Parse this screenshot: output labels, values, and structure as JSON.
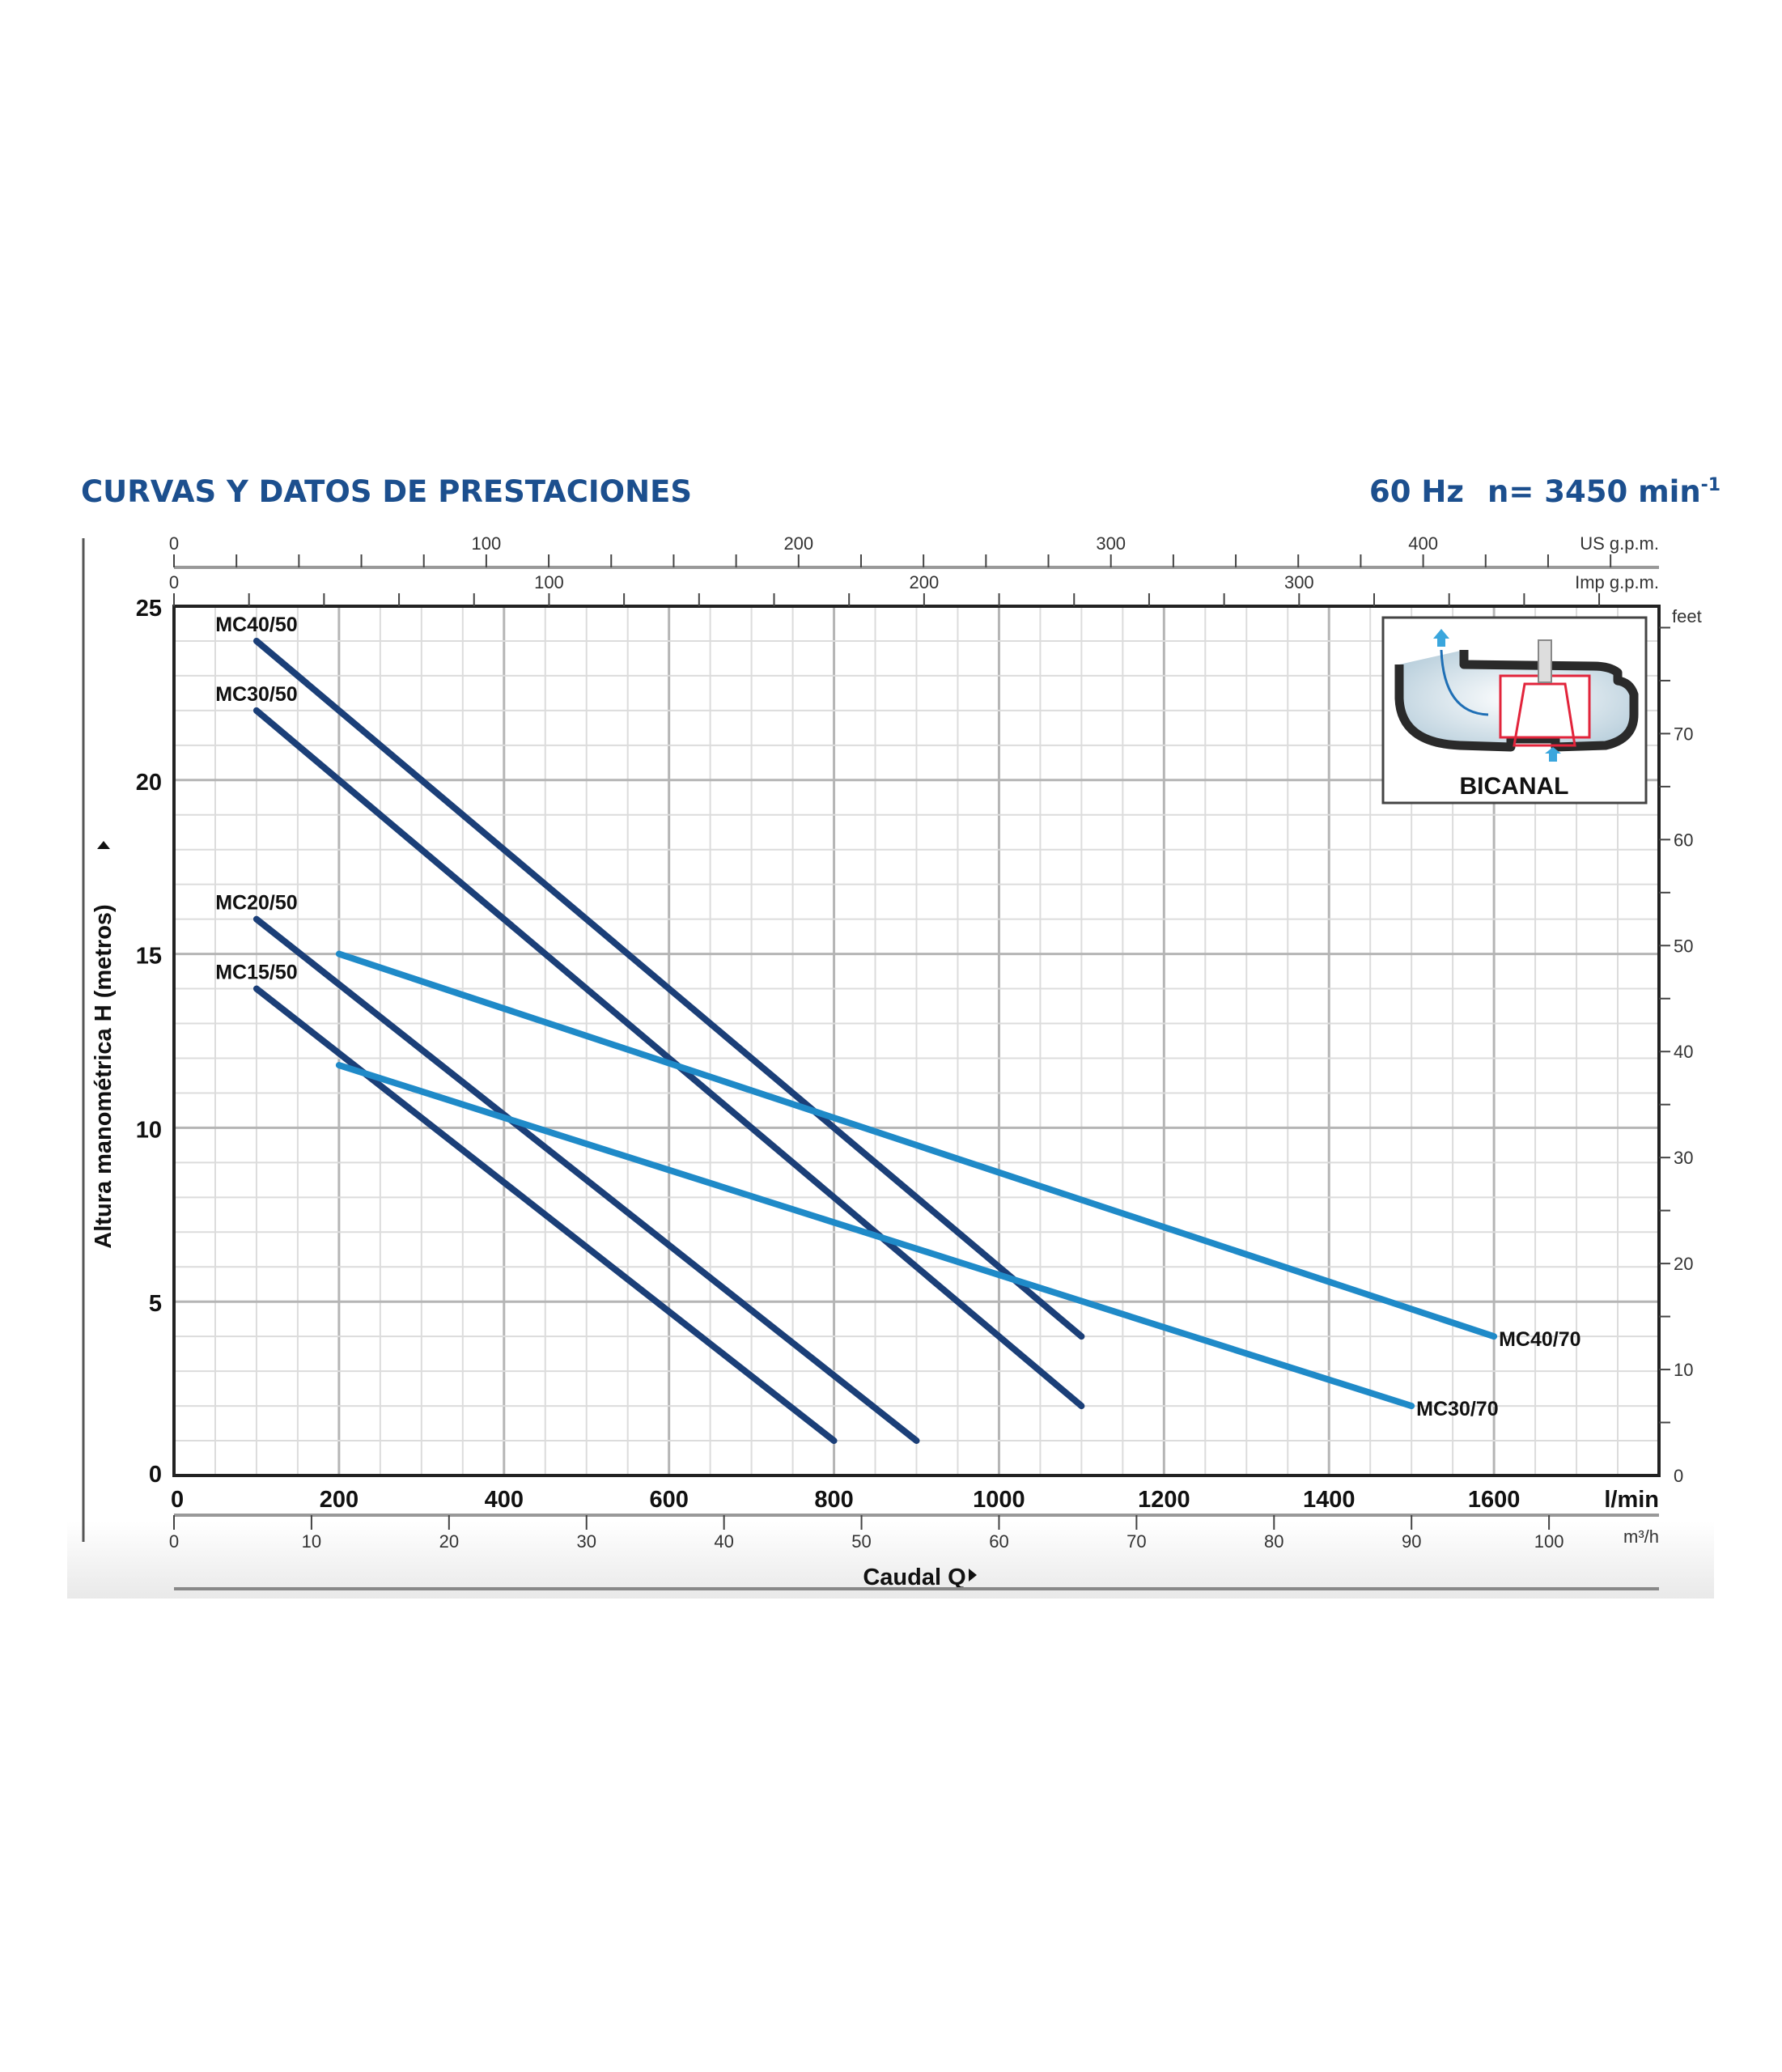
{
  "header": {
    "title": "CURVAS Y DATOS DE PRESTACIONES",
    "frequency": "60 Hz",
    "speed": "n= 3450 min",
    "speed_exp": "-1"
  },
  "inset": {
    "label": "BICANAL"
  },
  "chart_data": {
    "type": "line",
    "title": "CURVAS Y DATOS DE PRESTACIONES",
    "xlabel": "Caudal Q",
    "ylabel": "Altura manométrica H (metros)",
    "x_unit": "l/min",
    "xlim": [
      0,
      1800
    ],
    "ylim": [
      0,
      25
    ],
    "x_ticks": [
      0,
      200,
      400,
      600,
      800,
      1000,
      1200,
      1400,
      1600
    ],
    "y_ticks": [
      0,
      5,
      10,
      15,
      20,
      25
    ],
    "grid": true,
    "secondary_axes": {
      "us_gpm": {
        "unit": "US g.p.m.",
        "ticks": [
          0,
          100,
          200,
          300,
          400
        ]
      },
      "imp_gpm": {
        "unit": "Imp g.p.m.",
        "ticks": [
          0,
          100,
          200,
          300
        ]
      },
      "m3h": {
        "unit": "m³/h",
        "ticks": [
          0,
          10,
          20,
          30,
          40,
          50,
          60,
          70,
          80,
          90,
          100
        ]
      },
      "feet": {
        "unit": "feet",
        "ticks": [
          0,
          10,
          20,
          30,
          40,
          50,
          60,
          70
        ]
      }
    },
    "series": [
      {
        "name": "MC40/50",
        "color": "#1b3f78",
        "points": [
          [
            100,
            24
          ],
          [
            1100,
            4
          ]
        ]
      },
      {
        "name": "MC30/50",
        "color": "#1b3f78",
        "points": [
          [
            100,
            22
          ],
          [
            1100,
            2
          ]
        ]
      },
      {
        "name": "MC20/50",
        "color": "#1b3f78",
        "points": [
          [
            100,
            16
          ],
          [
            900,
            1
          ]
        ]
      },
      {
        "name": "MC15/50",
        "color": "#1b3f78",
        "points": [
          [
            100,
            14
          ],
          [
            800,
            1
          ]
        ]
      },
      {
        "name": "MC40/70",
        "color": "#1f8ac8",
        "points": [
          [
            200,
            15
          ],
          [
            1600,
            4
          ]
        ]
      },
      {
        "name": "MC30/70",
        "color": "#1f8ac8",
        "points": [
          [
            200,
            11.8
          ],
          [
            1500,
            2
          ]
        ]
      }
    ]
  }
}
